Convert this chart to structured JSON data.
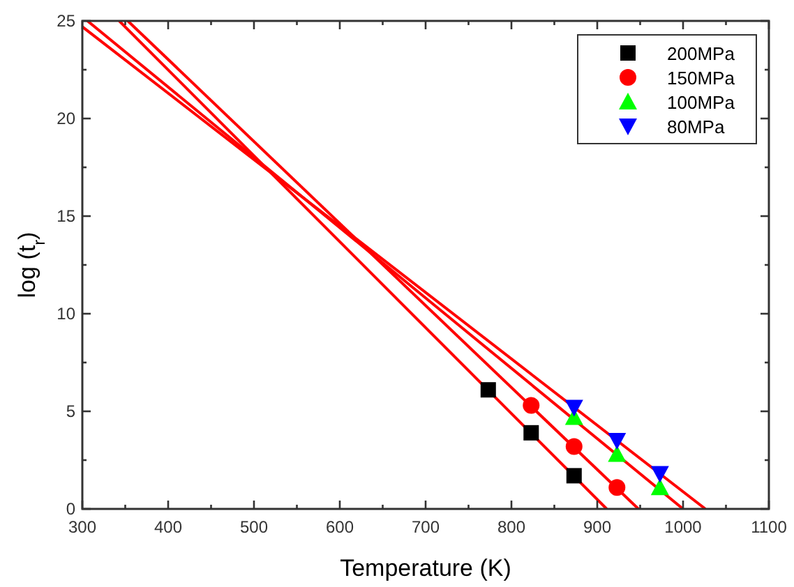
{
  "chart_data": {
    "type": "scatter",
    "xlabel": "Temperature (K)",
    "ylabel": "log (t$_{r}$)",
    "xlim": [
      300,
      1100
    ],
    "ylim": [
      0,
      25
    ],
    "xticks": [
      300,
      {
        "value": 350,
        "label": null
      },
      400,
      {
        "value": 450,
        "label": null
      },
      500,
      {
        "value": 550,
        "label": null
      },
      600,
      {
        "value": 650,
        "label": null
      },
      700,
      {
        "value": 750,
        "label": null
      },
      800,
      {
        "value": 850,
        "label": null
      },
      900,
      {
        "value": 950,
        "label": null
      },
      1000,
      {
        "value": 1050,
        "label": null
      },
      1100
    ],
    "yticks": [
      0,
      {
        "value": 2.5,
        "label": null
      },
      5,
      {
        "value": 7.5,
        "label": null
      },
      10,
      {
        "value": 12.5,
        "label": null
      },
      15,
      {
        "value": 17.5,
        "label": null
      },
      20,
      {
        "value": 22.5,
        "label": null
      },
      25
    ],
    "legend": "top right",
    "grid": false,
    "series": [
      {
        "name": "200MPa",
        "marker": "square",
        "color": "#000000",
        "x": [
          773,
          823,
          873
        ],
        "values": [
          6.1,
          3.9,
          1.7
        ]
      },
      {
        "name": "150MPa",
        "marker": "circle",
        "color": "#ff0000",
        "x": [
          823,
          873,
          923
        ],
        "values": [
          5.3,
          3.2,
          1.1
        ]
      },
      {
        "name": "100MPa",
        "marker": "triangle",
        "color": "#00ff00",
        "x": [
          873,
          923,
          973
        ],
        "values": [
          4.7,
          2.8,
          1.1
        ]
      },
      {
        "name": "80MPa",
        "marker": "triangle-down",
        "color": "#0000ff",
        "x": [
          873,
          923,
          973
        ],
        "values": [
          5.2,
          3.5,
          1.8
        ]
      },
      {
        "type": "line",
        "color": "#ff0000",
        "x": [
          343,
          911
        ],
        "values": [
          25,
          0
        ]
      },
      {
        "type": "line",
        "color": "#ff0000",
        "x": [
          353,
          948
        ],
        "values": [
          25,
          0
        ]
      },
      {
        "type": "line",
        "color": "#ff0000",
        "x": [
          306,
          1000
        ],
        "values": [
          25,
          0
        ]
      },
      {
        "type": "line",
        "color": "#ff0000",
        "x": [
          300,
          1026
        ],
        "values": [
          24.7,
          0
        ]
      }
    ]
  }
}
